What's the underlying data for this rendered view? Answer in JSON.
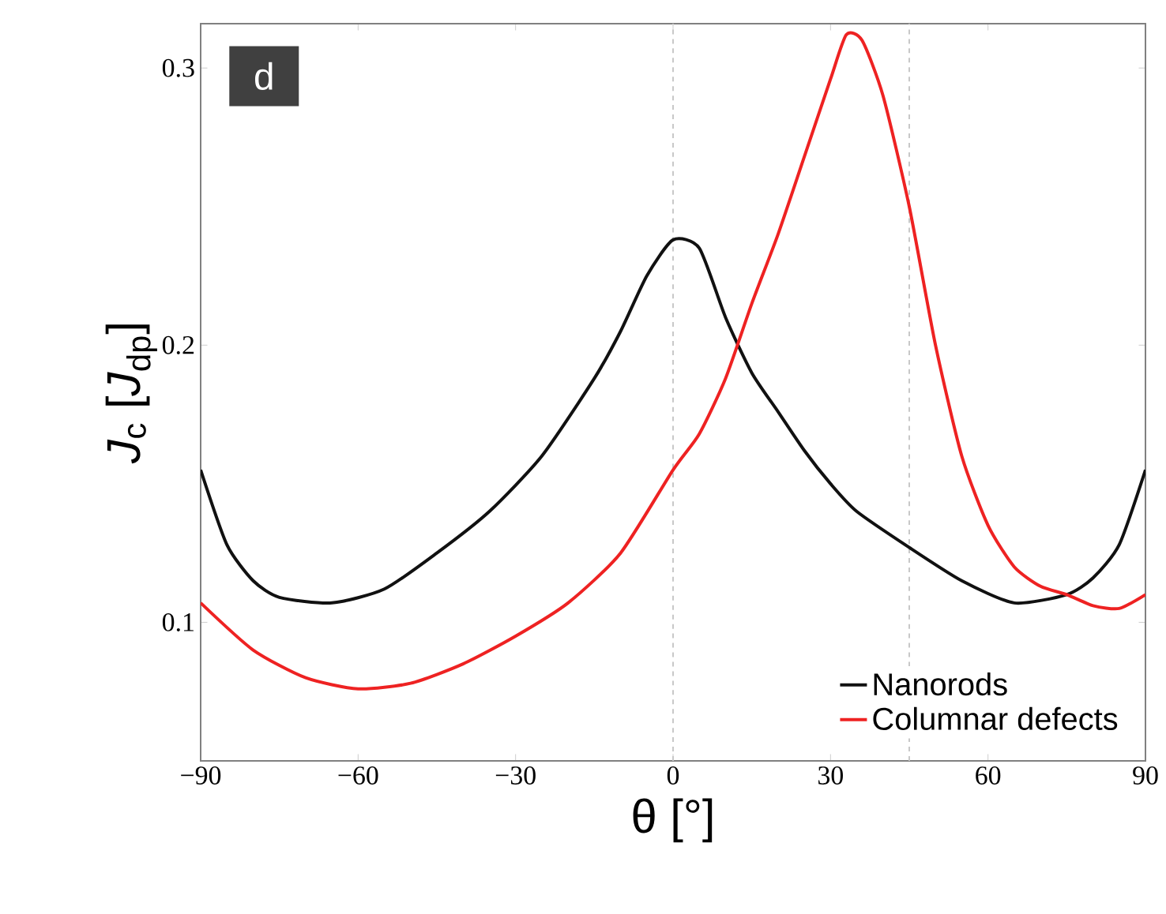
{
  "chart_data": {
    "type": "line",
    "xlabel": "θ [°]",
    "ylabel": "*J*$_{c}$  [*J*$_{dp}$]",
    "annotations": [
      "d"
    ],
    "xlim": [
      -90,
      90
    ],
    "ylim": [
      0.05,
      0.316
    ],
    "xticks": [
      {
        "value": -90,
        "label": "−90"
      },
      {
        "value": -60,
        "label": "−60"
      },
      {
        "value": -30,
        "label": "−30"
      },
      0,
      30,
      60,
      90
    ],
    "yticks": [
      0.1,
      0.2,
      0.3
    ],
    "legend": "bottom right",
    "line_style": "solid",
    "marker": "none",
    "ref_lines": [
      {
        "axis": "x",
        "value": 0,
        "color": "#c8c8c8",
        "line_style": "dashed"
      },
      {
        "axis": "x",
        "value": 45,
        "color": "#c8c8c8",
        "line_style": "dashed"
      }
    ],
    "series": [
      {
        "name": "Nanorods",
        "color": "#111111",
        "x": [
          -90,
          -85,
          -80,
          -75,
          -65,
          -55,
          -45,
          -35,
          -25,
          -15,
          -10,
          -5,
          0,
          5,
          10,
          15,
          20,
          25,
          30,
          35,
          45,
          55,
          65,
          75,
          80,
          85,
          90
        ],
        "values": [
          0.155,
          0.128,
          0.115,
          0.109,
          0.107,
          0.112,
          0.125,
          0.14,
          0.16,
          0.188,
          0.205,
          0.225,
          0.238,
          0.235,
          0.21,
          0.19,
          0.176,
          0.162,
          0.15,
          0.14,
          0.127,
          0.115,
          0.107,
          0.11,
          0.116,
          0.128,
          0.155
        ]
      },
      {
        "name": "Columnar defects",
        "color": "#ee2222",
        "x": [
          -90,
          -80,
          -70,
          -60,
          -50,
          -40,
          -30,
          -20,
          -10,
          0,
          5,
          10,
          15,
          20,
          25,
          30,
          33,
          36,
          40,
          45,
          50,
          55,
          60,
          65,
          70,
          75,
          80,
          85,
          90
        ],
        "values": [
          0.107,
          0.09,
          0.08,
          0.076,
          0.078,
          0.085,
          0.095,
          0.107,
          0.125,
          0.155,
          0.168,
          0.188,
          0.215,
          0.24,
          0.268,
          0.296,
          0.312,
          0.31,
          0.29,
          0.25,
          0.2,
          0.16,
          0.135,
          0.12,
          0.113,
          0.11,
          0.106,
          0.105,
          0.11
        ]
      }
    ]
  }
}
